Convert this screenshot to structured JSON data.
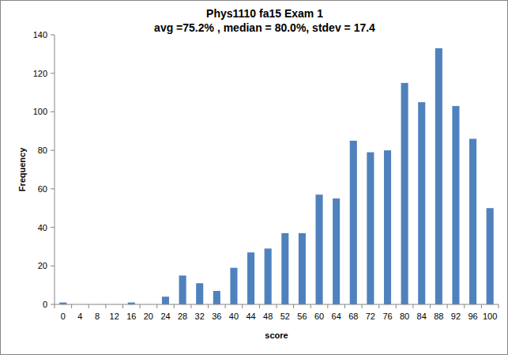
{
  "chart_data": {
    "type": "bar",
    "title": "Phys1110 fa15 Exam 1",
    "subtitle": "avg =75.2% , median = 80.0%, stdev = 17.4",
    "x_label": "score",
    "y_label": "Frequency",
    "categories": [
      "0",
      "4",
      "8",
      "12",
      "16",
      "20",
      "24",
      "28",
      "32",
      "36",
      "40",
      "44",
      "48",
      "52",
      "56",
      "60",
      "64",
      "68",
      "72",
      "76",
      "80",
      "84",
      "88",
      "92",
      "96",
      "100"
    ],
    "values": [
      1,
      0,
      0,
      0,
      1,
      0,
      4,
      15,
      11,
      7,
      19,
      27,
      29,
      37,
      37,
      57,
      55,
      85,
      79,
      80,
      115,
      105,
      133,
      103,
      86,
      50
    ],
    "color": "#4f81bd",
    "ylim": [
      0,
      140
    ],
    "yticks": [
      0,
      20,
      40,
      60,
      80,
      100,
      120,
      140
    ],
    "grid": false
  }
}
